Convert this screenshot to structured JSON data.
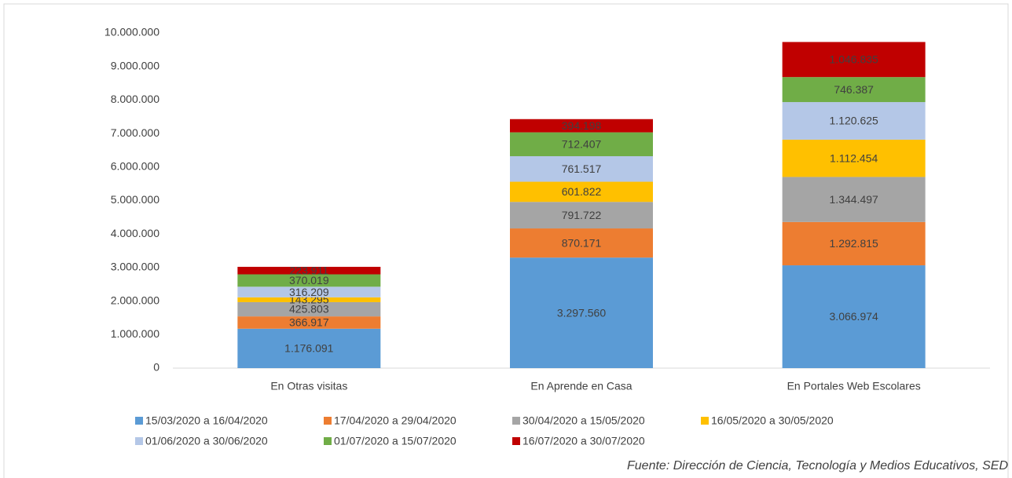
{
  "chart_data": {
    "type": "stacked_bar",
    "categories": [
      "En Otras visitas",
      "En Aprende en Casa",
      "En Portales Web Escolares"
    ],
    "series": [
      {
        "name": "15/03/2020 a 16/04/2020",
        "color": "#5b9bd5",
        "values": [
          1176091,
          3297560,
          3066974
        ],
        "value_labels": [
          "1.176.091",
          "3.297.560",
          "3.066.974"
        ]
      },
      {
        "name": "17/04/2020 a 29/04/2020",
        "color": "#ed7d31",
        "values": [
          366917,
          870171,
          1292815
        ],
        "value_labels": [
          "366.917",
          "870.171",
          "1.292.815"
        ]
      },
      {
        "name": "30/04/2020 a 15/05/2020",
        "color": "#a5a5a5",
        "values": [
          425803,
          791722,
          1344497
        ],
        "value_labels": [
          "425.803",
          "791.722",
          "1.344.497"
        ]
      },
      {
        "name": "16/05/2020 a 30/05/2020",
        "color": "#ffc000",
        "values": [
          143295,
          601822,
          1112454
        ],
        "value_labels": [
          "143.295",
          "601.822",
          "1.112.454"
        ]
      },
      {
        "name": "01/06/2020 a 30/06/2020",
        "color": "#b4c7e7",
        "values": [
          316209,
          761517,
          1120625
        ],
        "value_labels": [
          "316.209",
          "761.517",
          "1.120.625"
        ]
      },
      {
        "name": "01/07/2020 a 15/07/2020",
        "color": "#70ad47",
        "values": [
          370019,
          712407,
          746387
        ],
        "value_labels": [
          "370.019",
          "712.407",
          "746.387"
        ]
      },
      {
        "name": "16/07/2020 a 30/07/2020",
        "color": "#c00000",
        "values": [
          223911,
          394198,
          1046835
        ],
        "value_labels": [
          "223.911",
          "394.198",
          "1.046.835"
        ]
      }
    ],
    "ylim": [
      0,
      10000000
    ],
    "yticks": [
      0,
      {
        "value": 1000000,
        "label": "1.000.000"
      },
      {
        "value": 2000000,
        "label": "2.000.000"
      },
      {
        "value": 3000000,
        "label": "3.000.000"
      },
      {
        "value": 4000000,
        "label": "4.000.000"
      },
      {
        "value": 5000000,
        "label": "5.000.000"
      },
      {
        "value": 6000000,
        "label": "6.000.000"
      },
      {
        "value": 7000000,
        "label": "7.000.000"
      },
      {
        "value": 8000000,
        "label": "8.000.000"
      },
      {
        "value": 9000000,
        "label": "9.000.000"
      },
      {
        "value": 10000000,
        "label": "10.000.000"
      }
    ],
    "grid": false,
    "legend": "bottom",
    "source": "Fuente: Dirección de Ciencia, Tecnología y Medios Educativos, SED"
  }
}
